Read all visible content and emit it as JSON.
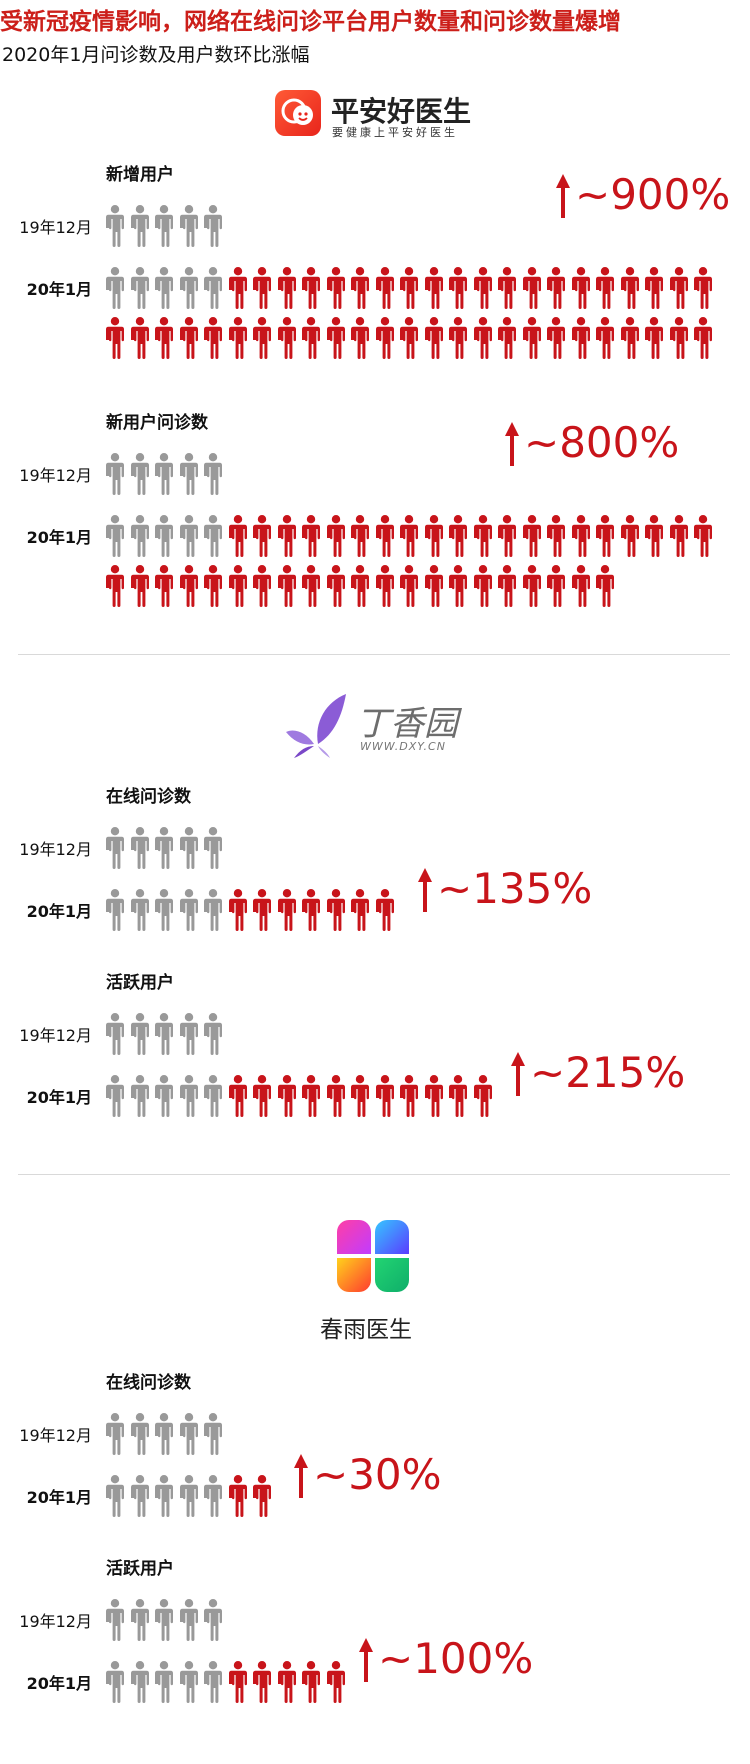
{
  "header": {
    "title": "受新冠疫情影响，网络在线问诊平台用户数量和问诊数量爆增",
    "subtitle": "2020年1月问诊数及用户数环比涨幅"
  },
  "colors": {
    "before": "#999999",
    "increase": "#c8141a",
    "title": "#cc1f1a"
  },
  "legend_labels": {
    "before": "19年12月",
    "after": "20年1月"
  },
  "platforms": [
    {
      "logo": {
        "name": "平安好医生",
        "tagline": "要健康上平安好医生",
        "icon": "pingan-doctor-logo-icon"
      },
      "metrics": [
        {
          "label": "新增用户",
          "before_icons": 5,
          "after_icons": 50,
          "growth_text": "~900%",
          "growth_percent": 900
        },
        {
          "label": "新用户问诊数",
          "before_icons": 5,
          "after_icons": 46,
          "growth_text": "~800%",
          "growth_percent": 800
        }
      ]
    },
    {
      "logo": {
        "name": "丁香园",
        "tagline": "WWW.DXY.CN",
        "icon": "dxy-butterfly-logo-icon"
      },
      "metrics": [
        {
          "label": "在线问诊数",
          "before_icons": 5,
          "after_icons": 12,
          "growth_text": "~135%",
          "growth_percent": 135
        },
        {
          "label": "活跃用户",
          "before_icons": 5,
          "after_icons": 16,
          "growth_text": "~215%",
          "growth_percent": 215
        }
      ]
    },
    {
      "logo": {
        "name": "春雨医生",
        "tagline": "",
        "icon": "chunyu-petal-logo-icon"
      },
      "metrics": [
        {
          "label": "在线问诊数",
          "before_icons": 5,
          "after_icons": 7,
          "growth_text": "~30%",
          "growth_percent": 30
        },
        {
          "label": "活跃用户",
          "before_icons": 5,
          "after_icons": 10,
          "growth_text": "~100%",
          "growth_percent": 100
        }
      ]
    }
  ],
  "chart_data": {
    "type": "pictogram",
    "unit_icon": "person-icon",
    "categories": [
      "19年12月",
      "20年1月"
    ],
    "groups": [
      {
        "platform": "平安好医生",
        "metric": "新增用户",
        "values": [
          5,
          50
        ],
        "growth": "~900%"
      },
      {
        "platform": "平安好医生",
        "metric": "新用户问诊数",
        "values": [
          5,
          46
        ],
        "growth": "~800%"
      },
      {
        "platform": "丁香园",
        "metric": "在线问诊数",
        "values": [
          5,
          12
        ],
        "growth": "~135%"
      },
      {
        "platform": "丁香园",
        "metric": "活跃用户",
        "values": [
          5,
          16
        ],
        "growth": "~215%"
      },
      {
        "platform": "春雨医生",
        "metric": "在线问诊数",
        "values": [
          5,
          7
        ],
        "growth": "~30%"
      },
      {
        "platform": "春雨医生",
        "metric": "活跃用户",
        "values": [
          5,
          10
        ],
        "growth": "~100%"
      }
    ]
  }
}
